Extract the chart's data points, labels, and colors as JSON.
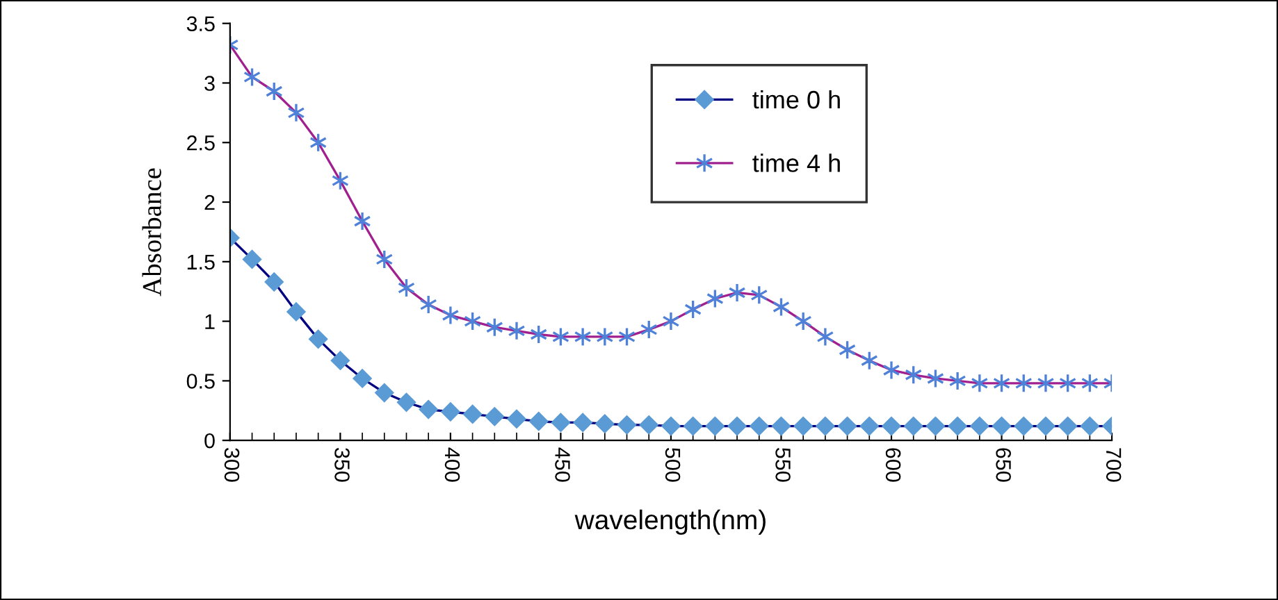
{
  "chart_data": {
    "type": "line",
    "xlabel": "wavelength(nm)",
    "ylabel": "Absorbance",
    "x": [
      300,
      310,
      320,
      330,
      340,
      350,
      360,
      370,
      380,
      390,
      400,
      410,
      420,
      430,
      440,
      450,
      460,
      470,
      480,
      490,
      500,
      510,
      520,
      530,
      540,
      550,
      560,
      570,
      580,
      590,
      600,
      610,
      620,
      630,
      640,
      650,
      660,
      670,
      680,
      690,
      700
    ],
    "series": [
      {
        "name": "time 0 h",
        "color": "#000080",
        "marker": "diamond",
        "values": [
          1.7,
          1.52,
          1.33,
          1.08,
          0.85,
          0.67,
          0.52,
          0.4,
          0.32,
          0.26,
          0.24,
          0.22,
          0.2,
          0.18,
          0.16,
          0.15,
          0.15,
          0.14,
          0.13,
          0.13,
          0.12,
          0.12,
          0.12,
          0.12,
          0.12,
          0.12,
          0.12,
          0.12,
          0.12,
          0.12,
          0.12,
          0.12,
          0.12,
          0.12,
          0.12,
          0.12,
          0.12,
          0.12,
          0.12,
          0.12,
          0.12
        ]
      },
      {
        "name": "time 4 h",
        "color": "#a0208f",
        "marker": "cross",
        "values": [
          3.32,
          3.05,
          2.93,
          2.75,
          2.5,
          2.18,
          1.84,
          1.52,
          1.28,
          1.14,
          1.05,
          1.0,
          0.95,
          0.92,
          0.89,
          0.87,
          0.87,
          0.87,
          0.87,
          0.93,
          1.0,
          1.1,
          1.19,
          1.24,
          1.22,
          1.12,
          1.0,
          0.87,
          0.76,
          0.67,
          0.59,
          0.55,
          0.52,
          0.5,
          0.48,
          0.48,
          0.48,
          0.48,
          0.48,
          0.48,
          0.48
        ]
      }
    ],
    "xlim": [
      300,
      700
    ],
    "xticks": [
      300,
      350,
      400,
      450,
      500,
      550,
      600,
      650,
      700
    ],
    "ylim": [
      0,
      3.5
    ],
    "yticks": [
      0,
      0.5,
      1,
      1.5,
      2,
      2.5,
      3,
      3.5
    ],
    "grid": false,
    "legend": "top"
  }
}
